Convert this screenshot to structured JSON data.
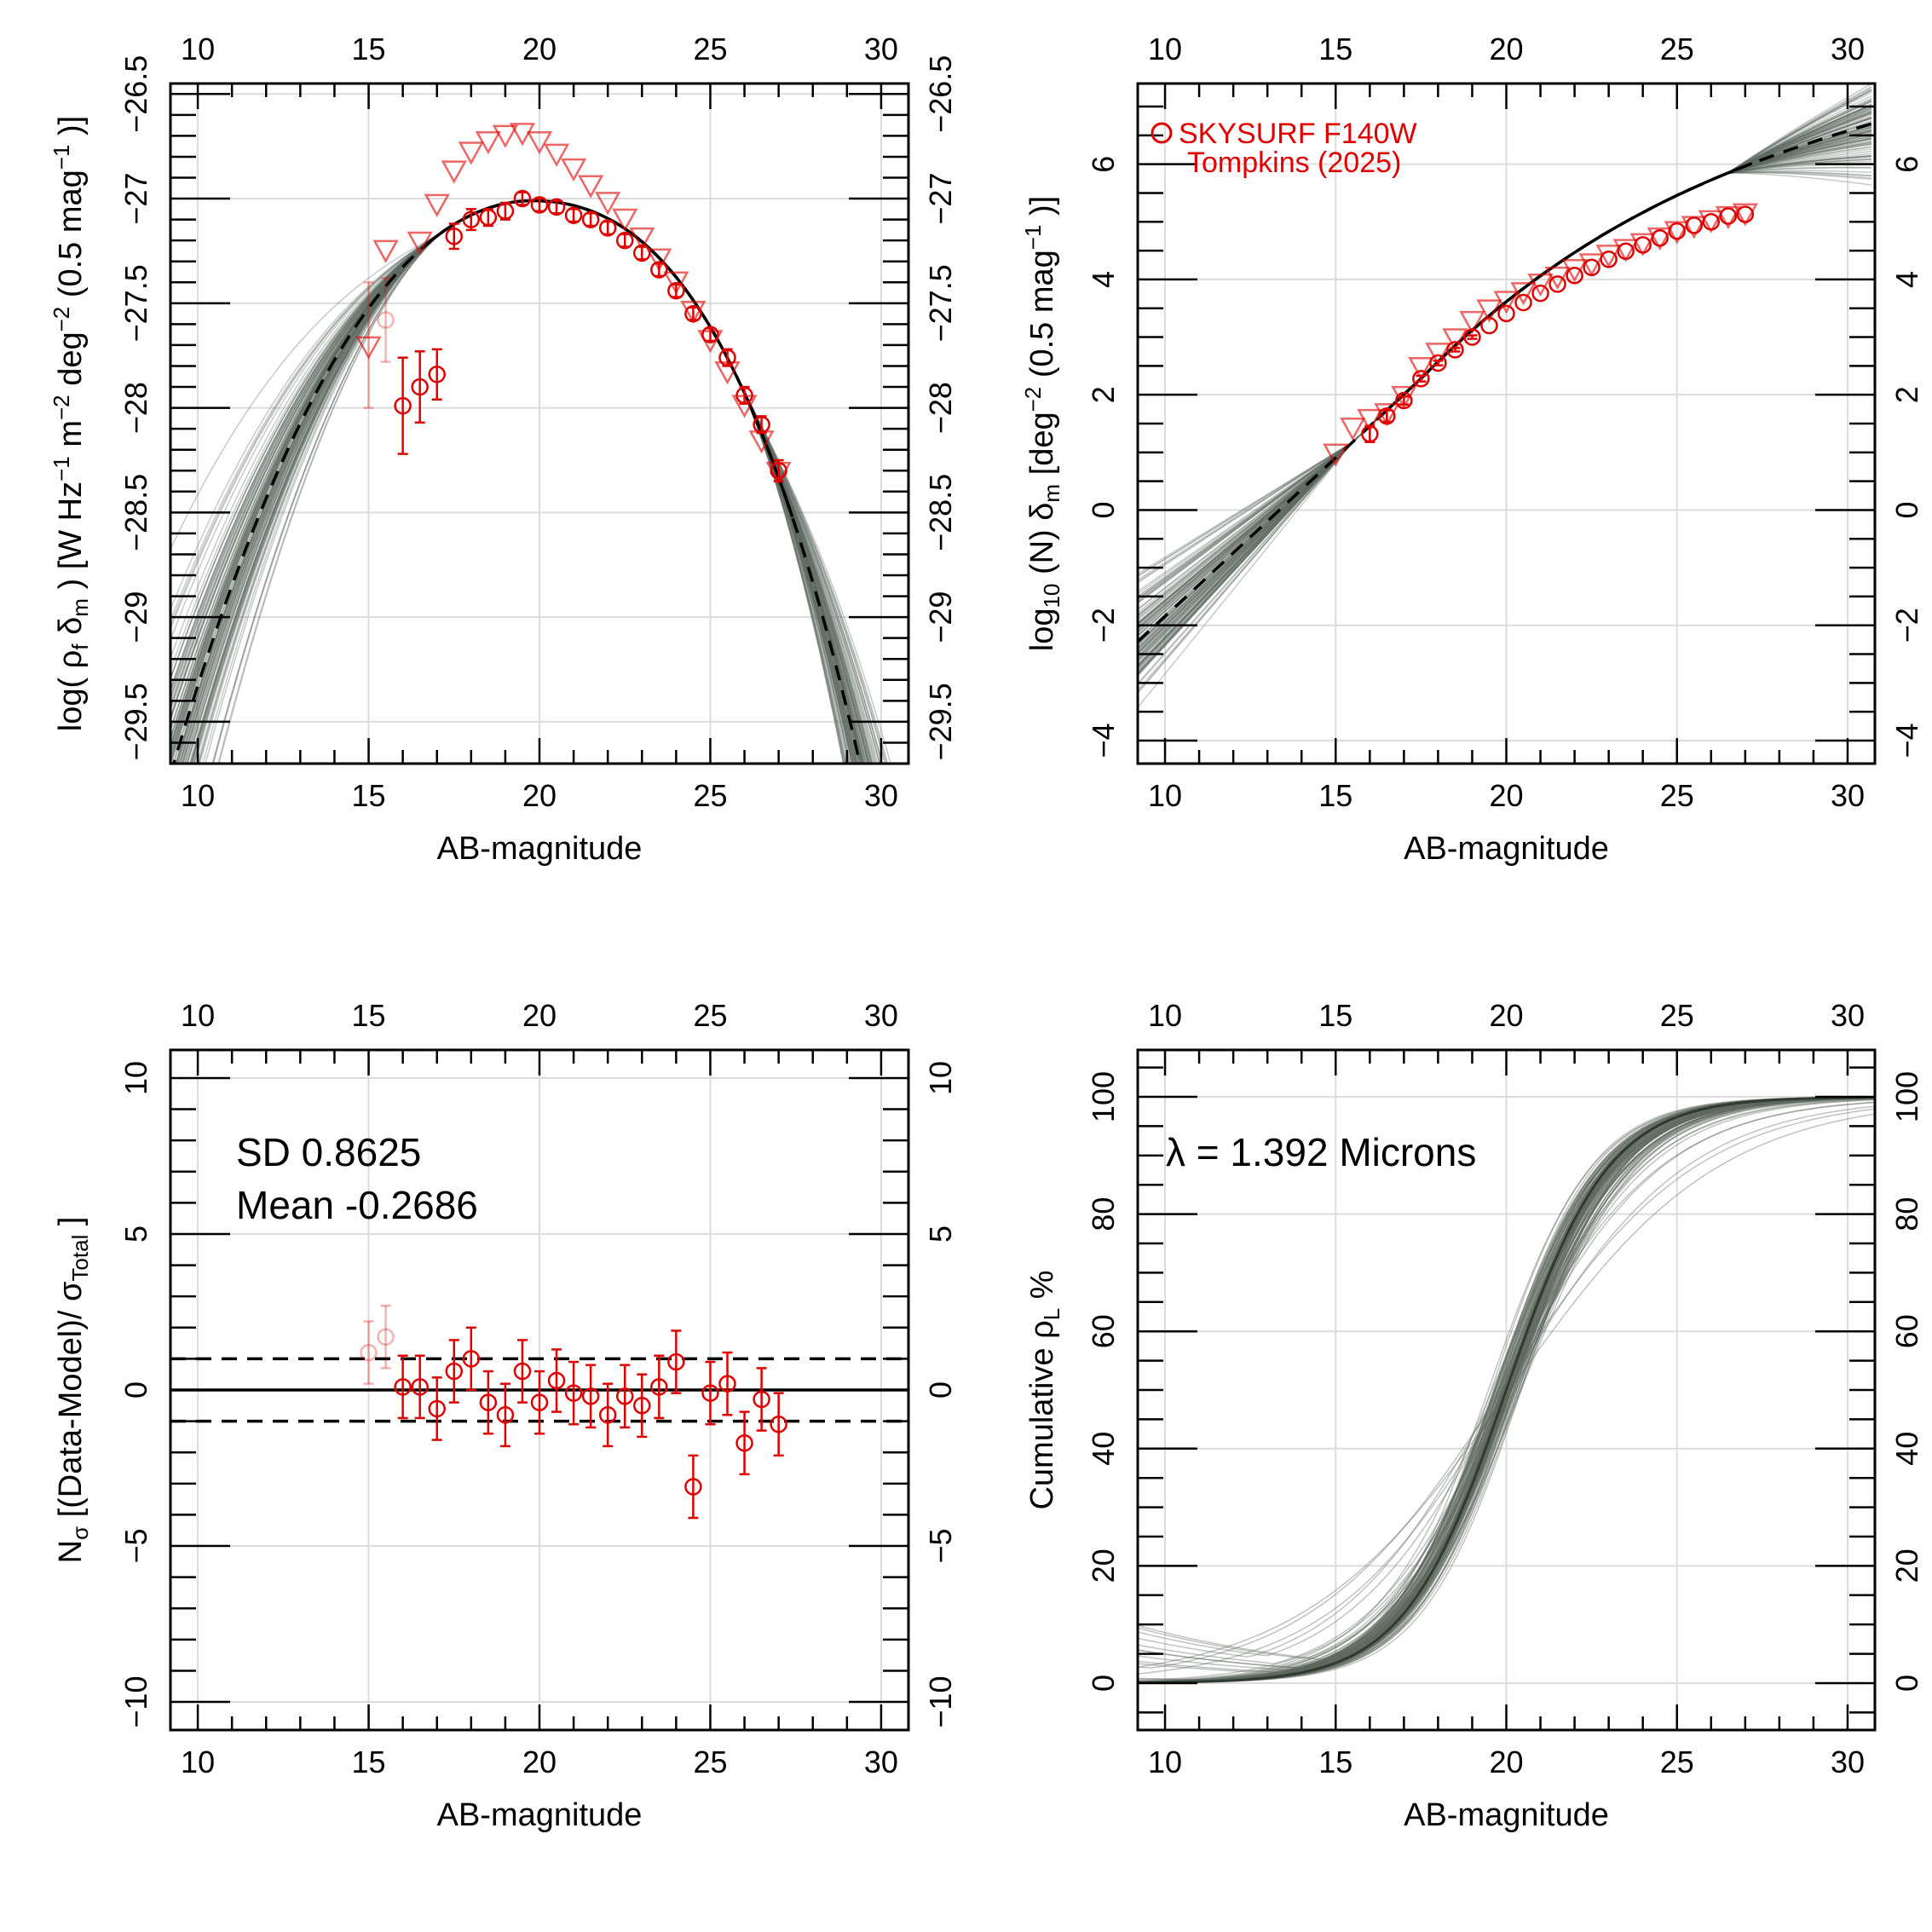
{
  "chart_data": [
    {
      "id": "p1",
      "type": "scatter",
      "xlabel": "AB-magnitude",
      "ylabel": "log( ρ_f δ_m ) [W Hz^-1 m^-2 deg^-2 (0.5 mag^-1 )]",
      "xlim": [
        9.2,
        30.8
      ],
      "ylim": [
        -29.7,
        -26.45
      ],
      "xticks": [
        "10",
        "15",
        "20",
        "25",
        "30"
      ],
      "yticks": [
        "−29.5",
        "−29",
        "−28.5",
        "−28",
        "−27.5",
        "−27",
        "−26.5"
      ],
      "model_peak_mag": 19.8,
      "model_peak_value": -27.01,
      "observed_points": [
        {
          "x": 15.5,
          "y": -27.58,
          "err": 0.2,
          "faded": true
        },
        {
          "x": 16.0,
          "y": -27.99,
          "err": 0.23
        },
        {
          "x": 16.5,
          "y": -27.9,
          "err": 0.17
        },
        {
          "x": 17.0,
          "y": -27.84,
          "err": 0.12
        },
        {
          "x": 17.5,
          "y": -27.18,
          "err": 0.06
        },
        {
          "x": 18.0,
          "y": -27.1,
          "err": 0.05
        },
        {
          "x": 18.5,
          "y": -27.09,
          "err": 0.04
        },
        {
          "x": 19.0,
          "y": -27.06,
          "err": 0.04
        },
        {
          "x": 19.5,
          "y": -27.0,
          "err": 0.03
        },
        {
          "x": 20.0,
          "y": -27.03,
          "err": 0.03
        },
        {
          "x": 20.5,
          "y": -27.04,
          "err": 0.03
        },
        {
          "x": 21.0,
          "y": -27.08,
          "err": 0.03
        },
        {
          "x": 21.5,
          "y": -27.1,
          "err": 0.03
        },
        {
          "x": 22.0,
          "y": -27.14,
          "err": 0.03
        },
        {
          "x": 22.5,
          "y": -27.2,
          "err": 0.03
        },
        {
          "x": 23.0,
          "y": -27.26,
          "err": 0.03
        },
        {
          "x": 23.5,
          "y": -27.34,
          "err": 0.03
        },
        {
          "x": 24.0,
          "y": -27.44,
          "err": 0.03
        },
        {
          "x": 24.5,
          "y": -27.55,
          "err": 0.03
        },
        {
          "x": 25.0,
          "y": -27.65,
          "err": 0.03
        },
        {
          "x": 25.5,
          "y": -27.76,
          "err": 0.04
        },
        {
          "x": 26.0,
          "y": -27.94,
          "err": 0.04
        },
        {
          "x": 26.5,
          "y": -28.08,
          "err": 0.04
        },
        {
          "x": 27.0,
          "y": -28.3,
          "err": 0.05
        }
      ],
      "literature_points": [
        {
          "x": 15.0,
          "y": -27.7,
          "err": 0.3
        },
        {
          "x": 15.5,
          "y": -27.24
        },
        {
          "x": 16.5,
          "y": -27.2
        },
        {
          "x": 17.0,
          "y": -27.02
        },
        {
          "x": 17.5,
          "y": -26.86
        },
        {
          "x": 18.0,
          "y": -26.77
        },
        {
          "x": 18.5,
          "y": -26.72
        },
        {
          "x": 19.0,
          "y": -26.69
        },
        {
          "x": 19.5,
          "y": -26.68
        },
        {
          "x": 20.0,
          "y": -26.72
        },
        {
          "x": 20.5,
          "y": -26.78
        },
        {
          "x": 21.0,
          "y": -26.85
        },
        {
          "x": 21.5,
          "y": -26.93
        },
        {
          "x": 22.0,
          "y": -27.01
        },
        {
          "x": 22.5,
          "y": -27.09
        },
        {
          "x": 23.0,
          "y": -27.18
        },
        {
          "x": 23.5,
          "y": -27.28
        },
        {
          "x": 24.0,
          "y": -27.39
        },
        {
          "x": 24.5,
          "y": -27.53
        },
        {
          "x": 25.0,
          "y": -27.67
        },
        {
          "x": 25.5,
          "y": -27.82
        },
        {
          "x": 26.0,
          "y": -27.98
        },
        {
          "x": 26.5,
          "y": -28.15
        },
        {
          "x": 27.0,
          "y": -28.3
        }
      ]
    },
    {
      "id": "p2",
      "type": "scatter",
      "xlabel": "AB-magnitude",
      "ylabel": "log10 (N) δm [deg^-2 (0.5 mag^-1 )]",
      "xlim": [
        9.2,
        30.8
      ],
      "ylim": [
        -4.4,
        7.4
      ],
      "xticks": [
        "10",
        "15",
        "20",
        "25",
        "30"
      ],
      "yticks": [
        "−4",
        "−2",
        "0",
        "2",
        "4",
        "6"
      ],
      "legend": [
        "SKYSURF F140W",
        "Tompkins (2025)"
      ],
      "legend_position": "top-left",
      "observed_points": [
        {
          "x": 16.0,
          "y": 1.32,
          "err": 0.14
        },
        {
          "x": 16.5,
          "y": 1.63,
          "err": 0.1
        },
        {
          "x": 17.0,
          "y": 1.9,
          "err": 0.07
        },
        {
          "x": 17.5,
          "y": 2.28,
          "err": 0.05
        },
        {
          "x": 18.0,
          "y": 2.55,
          "err": 0.04
        },
        {
          "x": 18.5,
          "y": 2.78,
          "err": 0.03
        },
        {
          "x": 19.0,
          "y": 3.0,
          "err": 0.03
        },
        {
          "x": 19.5,
          "y": 3.2
        },
        {
          "x": 20.0,
          "y": 3.41
        },
        {
          "x": 20.5,
          "y": 3.6
        },
        {
          "x": 21.0,
          "y": 3.76
        },
        {
          "x": 21.5,
          "y": 3.92
        },
        {
          "x": 22.0,
          "y": 4.07
        },
        {
          "x": 22.5,
          "y": 4.21
        },
        {
          "x": 23.0,
          "y": 4.35
        },
        {
          "x": 23.5,
          "y": 4.49
        },
        {
          "x": 24.0,
          "y": 4.6
        },
        {
          "x": 24.5,
          "y": 4.72
        },
        {
          "x": 25.0,
          "y": 4.84
        },
        {
          "x": 25.5,
          "y": 4.94
        },
        {
          "x": 26.0,
          "y": 5.0
        },
        {
          "x": 26.5,
          "y": 5.1
        },
        {
          "x": 27.0,
          "y": 5.13
        }
      ],
      "literature_points": [
        {
          "x": 15.0,
          "y": 1.0
        },
        {
          "x": 15.5,
          "y": 1.45
        },
        {
          "x": 16.0,
          "y": 1.6
        },
        {
          "x": 16.5,
          "y": 1.7
        },
        {
          "x": 17.0,
          "y": 2.0
        },
        {
          "x": 17.5,
          "y": 2.5
        },
        {
          "x": 18.0,
          "y": 2.75
        },
        {
          "x": 18.5,
          "y": 3.0
        },
        {
          "x": 19.0,
          "y": 3.3
        },
        {
          "x": 19.5,
          "y": 3.5
        },
        {
          "x": 20.0,
          "y": 3.65
        },
        {
          "x": 20.5,
          "y": 3.8
        },
        {
          "x": 21.0,
          "y": 3.95
        },
        {
          "x": 21.5,
          "y": 4.07
        },
        {
          "x": 22.0,
          "y": 4.2
        },
        {
          "x": 22.5,
          "y": 4.3
        },
        {
          "x": 23.0,
          "y": 4.45
        },
        {
          "x": 23.5,
          "y": 4.55
        },
        {
          "x": 24.0,
          "y": 4.65
        },
        {
          "x": 24.5,
          "y": 4.75
        },
        {
          "x": 25.0,
          "y": 4.86
        },
        {
          "x": 25.5,
          "y": 4.95
        },
        {
          "x": 26.0,
          "y": 5.05
        },
        {
          "x": 26.5,
          "y": 5.12
        },
        {
          "x": 27.0,
          "y": 5.17
        }
      ]
    },
    {
      "id": "p3",
      "type": "scatter",
      "xlabel": "AB-magnitude",
      "ylabel": "Nσ [(Data-Model)/ σTotal ]",
      "xlim": [
        9.2,
        30.8
      ],
      "ylim": [
        -10.9,
        10.9
      ],
      "xticks": [
        "10",
        "15",
        "20",
        "25",
        "30"
      ],
      "yticks": [
        "−10",
        "−5",
        "0",
        "5",
        "10"
      ],
      "annotations": [
        "SD 0.8625",
        "Mean -0.2686"
      ],
      "reference_lines": [
        -1,
        0,
        1
      ],
      "points": [
        {
          "x": 15.0,
          "y": 1.2,
          "err": 1.0,
          "faded": true
        },
        {
          "x": 15.5,
          "y": 1.7,
          "err": 1.0,
          "faded": true
        },
        {
          "x": 16.0,
          "y": 0.1,
          "err": 1.0
        },
        {
          "x": 16.5,
          "y": 0.1,
          "err": 1.0
        },
        {
          "x": 17.0,
          "y": -0.6,
          "err": 1.0
        },
        {
          "x": 17.5,
          "y": 0.6,
          "err": 1.0
        },
        {
          "x": 18.0,
          "y": 1.0,
          "err": 1.0
        },
        {
          "x": 18.5,
          "y": -0.4,
          "err": 1.0
        },
        {
          "x": 19.0,
          "y": -0.8,
          "err": 1.0
        },
        {
          "x": 19.5,
          "y": 0.6,
          "err": 1.0
        },
        {
          "x": 20.0,
          "y": -0.4,
          "err": 1.0
        },
        {
          "x": 20.5,
          "y": 0.3,
          "err": 1.0
        },
        {
          "x": 21.0,
          "y": -0.1,
          "err": 1.0
        },
        {
          "x": 21.5,
          "y": -0.2,
          "err": 1.0
        },
        {
          "x": 22.0,
          "y": -0.8,
          "err": 1.0
        },
        {
          "x": 22.5,
          "y": -0.2,
          "err": 1.0
        },
        {
          "x": 23.0,
          "y": -0.5,
          "err": 1.0
        },
        {
          "x": 23.5,
          "y": 0.1,
          "err": 1.0
        },
        {
          "x": 24.0,
          "y": 0.9,
          "err": 1.0
        },
        {
          "x": 24.5,
          "y": -3.1,
          "err": 1.0
        },
        {
          "x": 25.0,
          "y": -0.1,
          "err": 1.0
        },
        {
          "x": 25.5,
          "y": 0.2,
          "err": 1.0
        },
        {
          "x": 26.0,
          "y": -1.7,
          "err": 1.0
        },
        {
          "x": 26.5,
          "y": -0.3,
          "err": 1.0
        },
        {
          "x": 27.0,
          "y": -1.1,
          "err": 1.0
        }
      ]
    },
    {
      "id": "p4",
      "type": "line",
      "xlabel": "AB-magnitude",
      "ylabel": "Cumulative ρL %",
      "xlim": [
        9.2,
        30.8
      ],
      "ylim": [
        -8,
        108
      ],
      "xticks": [
        "10",
        "15",
        "20",
        "25",
        "30"
      ],
      "yticks": [
        "0",
        "20",
        "40",
        "60",
        "80",
        "100"
      ],
      "annotation": "λ = 1.392 Microns",
      "model_midpoint_mag": 20.0,
      "model_min_percent": 0,
      "model_max_percent": 100
    }
  ],
  "colors": {
    "data_red": "#e00000",
    "model_line": "#2f3a30",
    "sample_grey": "#5f6a60",
    "grid": "#dcdcdc"
  }
}
